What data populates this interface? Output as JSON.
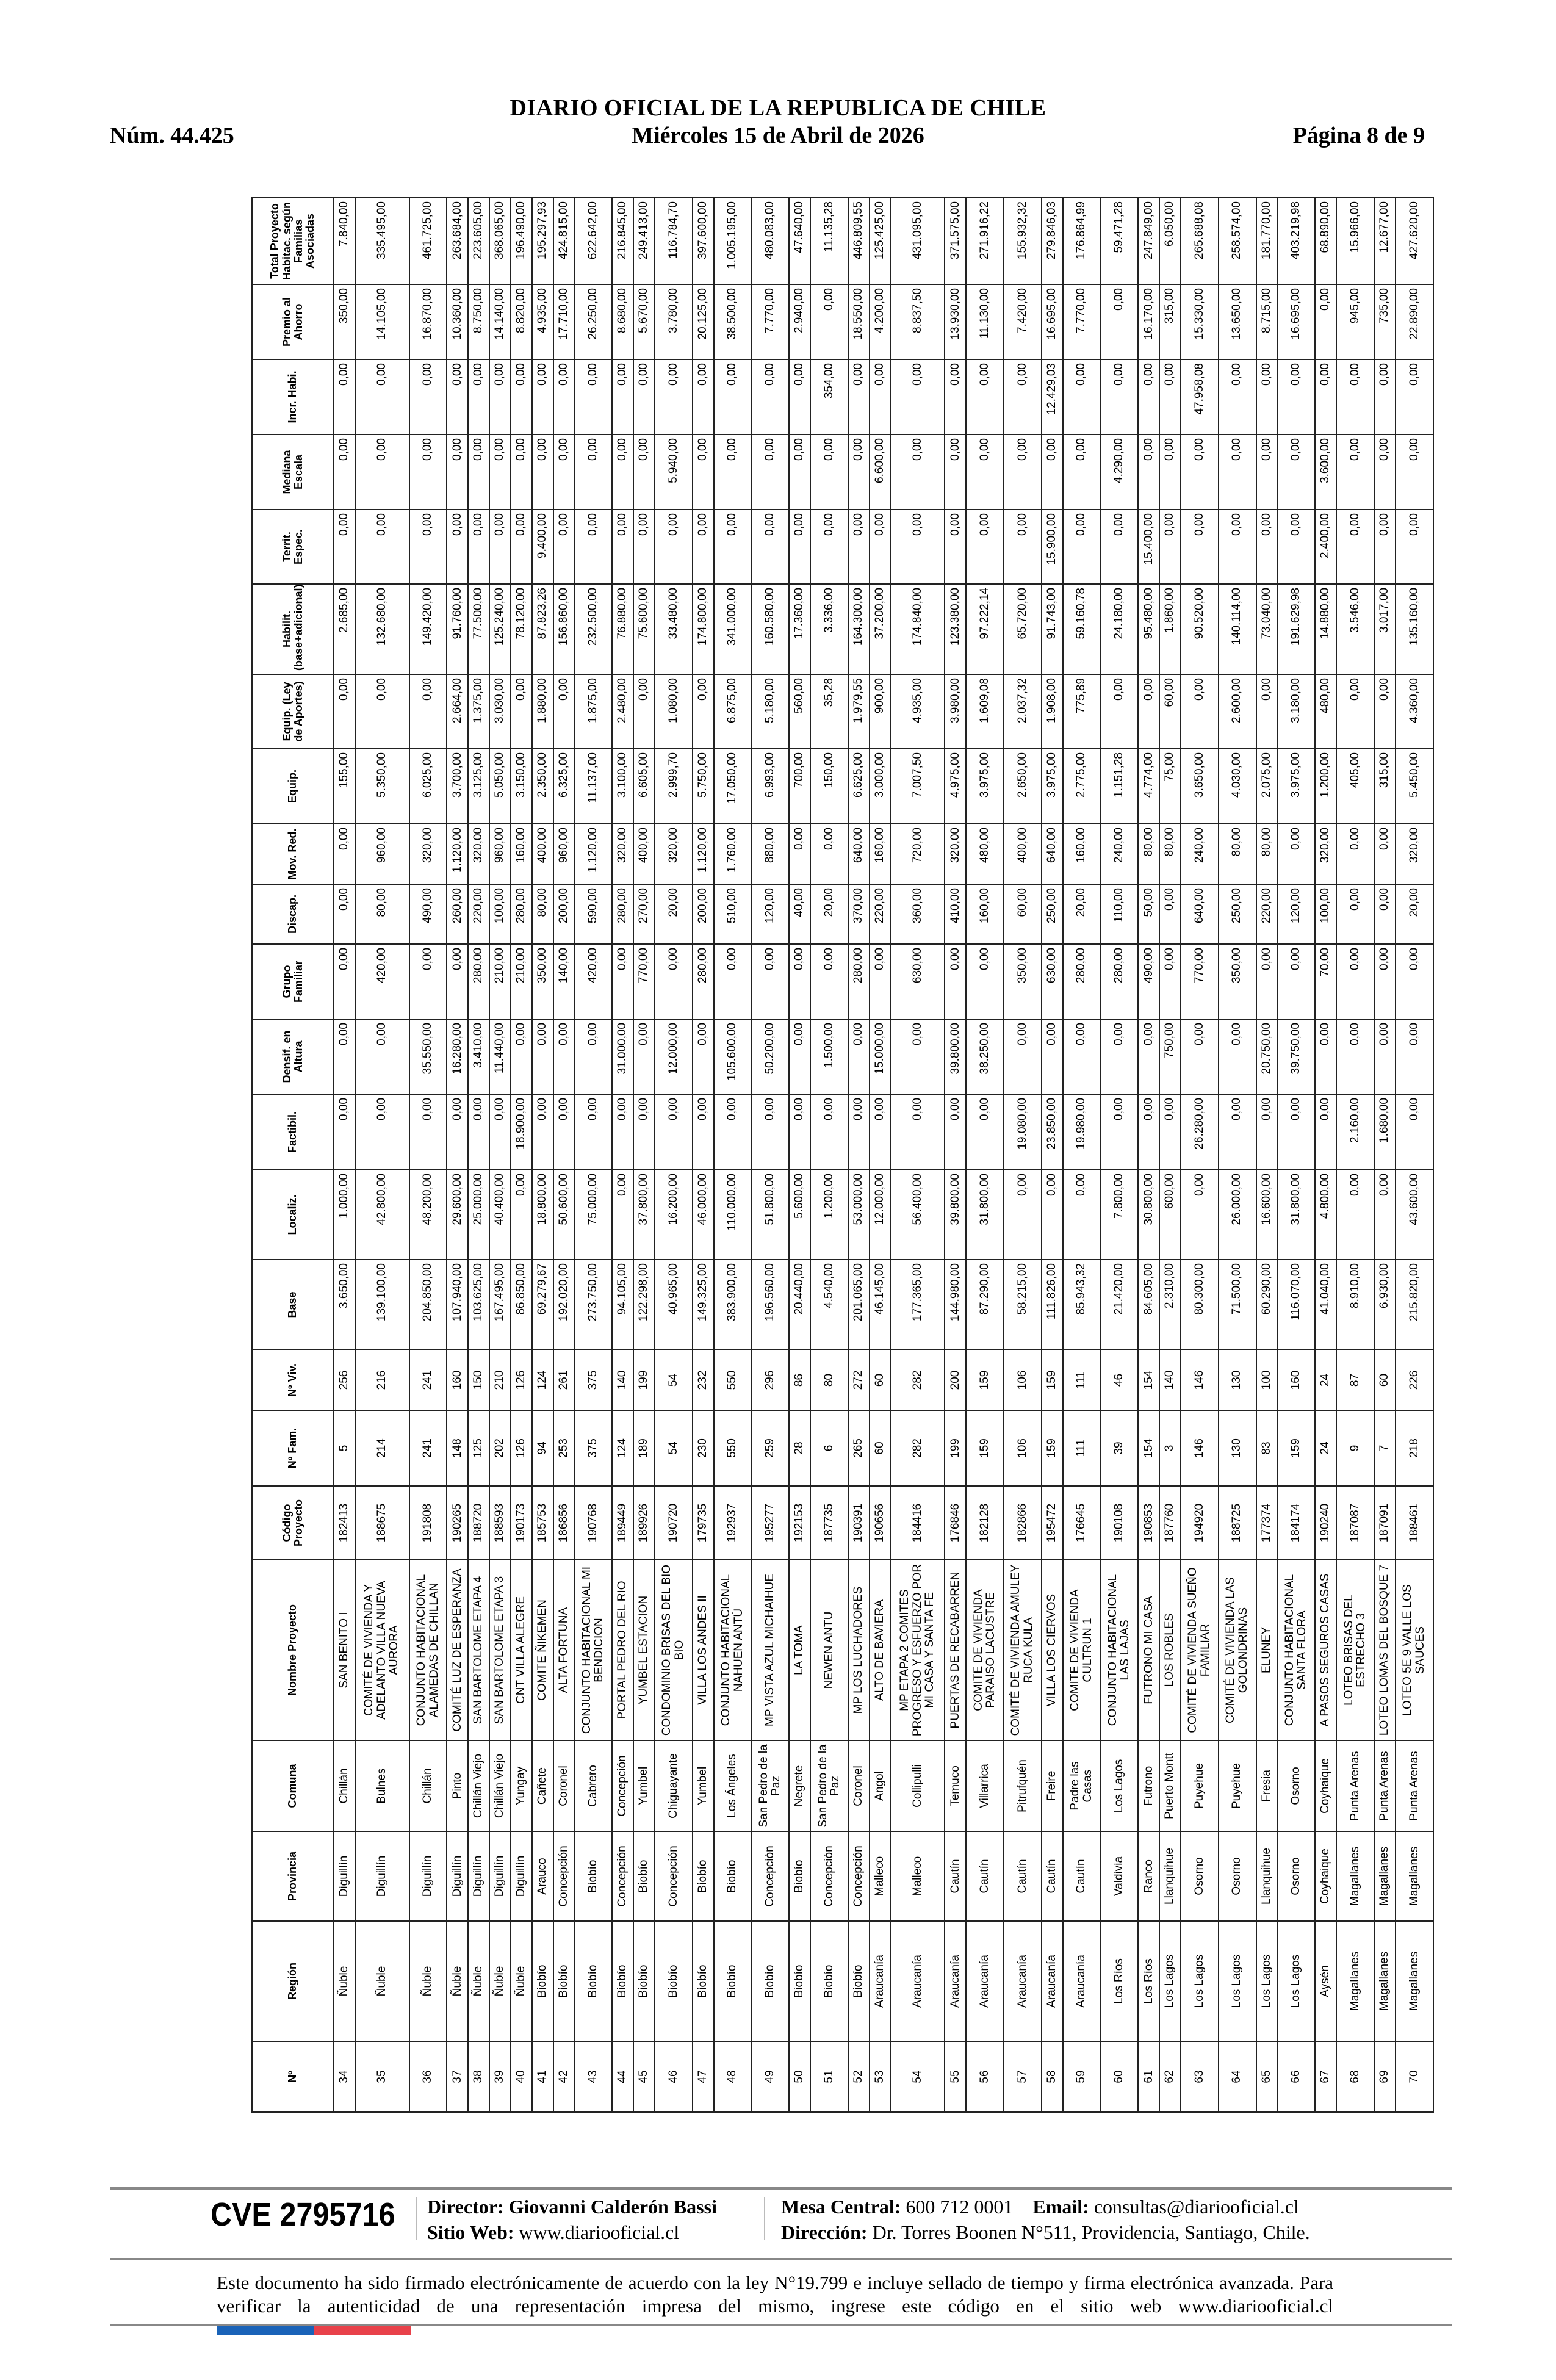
{
  "header": {
    "title": "DIARIO OFICIAL DE LA REPUBLICA DE CHILE",
    "number": "Núm. 44.425",
    "date": "Miércoles 15 de Abril de 2026",
    "page": "Página 8 de 9"
  },
  "table": {
    "columns": [
      "Nº",
      "Región",
      "Provincia",
      "Comuna",
      "Nombre Proyecto",
      "Código Proyecto",
      "Nº Fam.",
      "Nº Viv.",
      "Base",
      "Localiz.",
      "Factibil.",
      "Densif. en Altura",
      "Grupo Familiar",
      "Discap.",
      "Mov. Red.",
      "Equip.",
      "Equip. (Ley de Aportes)",
      "Habilit. (base+adicional)",
      "Territ. Espec.",
      "Mediana Escala",
      "Incr. Habi.",
      "Premio al Ahorro",
      "Total Proyecto Habitac. según Familias Asociadas"
    ],
    "rows": [
      [
        "34",
        "Ñuble",
        "Diguillín",
        "Chillán",
        "SAN BENITO I",
        "182413",
        "5",
        "256",
        "3.650,00",
        "1.000,00",
        "0,00",
        "0,00",
        "0,00",
        "0,00",
        "0,00",
        "155,00",
        "0,00",
        "2.685,00",
        "0,00",
        "0,00",
        "0,00",
        "350,00",
        "7.840,00"
      ],
      [
        "35",
        "Ñuble",
        "Diguillín",
        "Bulnes",
        "COMITÉ DE VIVIENDA Y ADELANTO VILLA NUEVA AURORA",
        "188675",
        "214",
        "216",
        "139.100,00",
        "42.800,00",
        "0,00",
        "0,00",
        "420,00",
        "80,00",
        "960,00",
        "5.350,00",
        "0,00",
        "132.680,00",
        "0,00",
        "0,00",
        "0,00",
        "14.105,00",
        "335.495,00"
      ],
      [
        "36",
        "Ñuble",
        "Diguillín",
        "Chillán",
        "CONJUNTO HABITACIONAL ALAMEDAS DE CHILLAN",
        "191808",
        "241",
        "241",
        "204.850,00",
        "48.200,00",
        "0,00",
        "35.550,00",
        "0,00",
        "490,00",
        "320,00",
        "6.025,00",
        "0,00",
        "149.420,00",
        "0,00",
        "0,00",
        "0,00",
        "16.870,00",
        "461.725,00"
      ],
      [
        "37",
        "Ñuble",
        "Diguillín",
        "Pinto",
        "COMITÉ LUZ DE ESPERANZA",
        "190265",
        "148",
        "160",
        "107.940,00",
        "29.600,00",
        "0,00",
        "16.280,00",
        "0,00",
        "260,00",
        "1.120,00",
        "3.700,00",
        "2.664,00",
        "91.760,00",
        "0,00",
        "0,00",
        "0,00",
        "10.360,00",
        "263.684,00"
      ],
      [
        "38",
        "Ñuble",
        "Diguillín",
        "Chillán Viejo",
        "SAN BARTOLOME ETAPA 4",
        "188720",
        "125",
        "150",
        "103.625,00",
        "25.000,00",
        "0,00",
        "3.410,00",
        "280,00",
        "220,00",
        "320,00",
        "3.125,00",
        "1.375,00",
        "77.500,00",
        "0,00",
        "0,00",
        "0,00",
        "8.750,00",
        "223.605,00"
      ],
      [
        "39",
        "Ñuble",
        "Diguillín",
        "Chillán Viejo",
        "SAN BARTOLOME ETAPA 3",
        "188593",
        "202",
        "210",
        "167.495,00",
        "40.400,00",
        "0,00",
        "11.440,00",
        "210,00",
        "100,00",
        "960,00",
        "5.050,00",
        "3.030,00",
        "125.240,00",
        "0,00",
        "0,00",
        "0,00",
        "14.140,00",
        "368.065,00"
      ],
      [
        "40",
        "Ñuble",
        "Diguillín",
        "Yungay",
        "CNT VILLA ALEGRE",
        "190173",
        "126",
        "126",
        "86.850,00",
        "0,00",
        "18.900,00",
        "0,00",
        "210,00",
        "280,00",
        "160,00",
        "3.150,00",
        "0,00",
        "78.120,00",
        "0,00",
        "0,00",
        "0,00",
        "8.820,00",
        "196.490,00"
      ],
      [
        "41",
        "Biobío",
        "Arauco",
        "Cañete",
        "COMITE ÑIKEMEN",
        "185753",
        "94",
        "124",
        "69.279,67",
        "18.800,00",
        "0,00",
        "0,00",
        "350,00",
        "80,00",
        "400,00",
        "2.350,00",
        "1.880,00",
        "87.823,26",
        "9.400,00",
        "0,00",
        "0,00",
        "4.935,00",
        "195.297,93"
      ],
      [
        "42",
        "Biobío",
        "Concepción",
        "Coronel",
        "ALTA FORTUNA",
        "186856",
        "253",
        "261",
        "192.020,00",
        "50.600,00",
        "0,00",
        "0,00",
        "140,00",
        "200,00",
        "960,00",
        "6.325,00",
        "0,00",
        "156.860,00",
        "0,00",
        "0,00",
        "0,00",
        "17.710,00",
        "424.815,00"
      ],
      [
        "43",
        "Biobío",
        "Biobío",
        "Cabrero",
        "CONJUNTO HABITACIONAL MI BENDICION",
        "190768",
        "375",
        "375",
        "273.750,00",
        "75.000,00",
        "0,00",
        "0,00",
        "420,00",
        "590,00",
        "1.120,00",
        "11.137,00",
        "1.875,00",
        "232.500,00",
        "0,00",
        "0,00",
        "0,00",
        "26.250,00",
        "622.642,00"
      ],
      [
        "44",
        "Biobío",
        "Concepción",
        "Concepción",
        "PORTAL PEDRO DEL RIO",
        "189449",
        "124",
        "140",
        "94.105,00",
        "0,00",
        "0,00",
        "31.000,00",
        "0,00",
        "280,00",
        "320,00",
        "3.100,00",
        "2.480,00",
        "76.880,00",
        "0,00",
        "0,00",
        "0,00",
        "8.680,00",
        "216.845,00"
      ],
      [
        "45",
        "Biobío",
        "Biobío",
        "Yumbel",
        "YUMBEL ESTACION",
        "189926",
        "189",
        "199",
        "122.298,00",
        "37.800,00",
        "0,00",
        "0,00",
        "770,00",
        "270,00",
        "400,00",
        "6.605,00",
        "0,00",
        "75.600,00",
        "0,00",
        "0,00",
        "0,00",
        "5.670,00",
        "249.413,00"
      ],
      [
        "46",
        "Biobío",
        "Concepción",
        "Chiguayante",
        "CONDOMINIO  BRISAS DEL BIO BIO",
        "190720",
        "54",
        "54",
        "40.965,00",
        "16.200,00",
        "0,00",
        "12.000,00",
        "0,00",
        "20,00",
        "320,00",
        "2.999,70",
        "1.080,00",
        "33.480,00",
        "0,00",
        "5.940,00",
        "0,00",
        "3.780,00",
        "116.784,70"
      ],
      [
        "47",
        "Biobío",
        "Biobío",
        "Yumbel",
        "VILLA LOS ANDES II",
        "179735",
        "230",
        "232",
        "149.325,00",
        "46.000,00",
        "0,00",
        "0,00",
        "280,00",
        "200,00",
        "1.120,00",
        "5.750,00",
        "0,00",
        "174.800,00",
        "0,00",
        "0,00",
        "0,00",
        "20.125,00",
        "397.600,00"
      ],
      [
        "48",
        "Biobío",
        "Biobío",
        "Los Ángeles",
        "CONJUNTO HABITACIONAL NAHUEN ANTÚ",
        "192937",
        "550",
        "550",
        "383.900,00",
        "110.000,00",
        "0,00",
        "105.600,00",
        "0,00",
        "510,00",
        "1.760,00",
        "17.050,00",
        "6.875,00",
        "341.000,00",
        "0,00",
        "0,00",
        "0,00",
        "38.500,00",
        "1.005.195,00"
      ],
      [
        "49",
        "Biobío",
        "Concepción",
        "San Pedro de la Paz",
        "MP VISTA AZUL MICHAIHUE",
        "195277",
        "259",
        "296",
        "196.560,00",
        "51.800,00",
        "0,00",
        "50.200,00",
        "0,00",
        "120,00",
        "880,00",
        "6.993,00",
        "5.180,00",
        "160.580,00",
        "0,00",
        "0,00",
        "0,00",
        "7.770,00",
        "480.083,00"
      ],
      [
        "50",
        "Biobío",
        "Biobío",
        "Negrete",
        "LA TOMA",
        "192153",
        "28",
        "86",
        "20.440,00",
        "5.600,00",
        "0,00",
        "0,00",
        "0,00",
        "40,00",
        "0,00",
        "700,00",
        "560,00",
        "17.360,00",
        "0,00",
        "0,00",
        "0,00",
        "2.940,00",
        "47.640,00"
      ],
      [
        "51",
        "Biobío",
        "Concepción",
        "San Pedro de la Paz",
        "NEWEN ANTU",
        "187735",
        "6",
        "80",
        "4.540,00",
        "1.200,00",
        "0,00",
        "1.500,00",
        "0,00",
        "20,00",
        "0,00",
        "150,00",
        "35,28",
        "3.336,00",
        "0,00",
        "0,00",
        "354,00",
        "0,00",
        "11.135,28"
      ],
      [
        "52",
        "Biobío",
        "Concepción",
        "Coronel",
        "MP LOS LUCHADORES",
        "190391",
        "265",
        "272",
        "201.065,00",
        "53.000,00",
        "0,00",
        "0,00",
        "280,00",
        "370,00",
        "640,00",
        "6.625,00",
        "1.979,55",
        "164.300,00",
        "0,00",
        "0,00",
        "0,00",
        "18.550,00",
        "446.809,55"
      ],
      [
        "53",
        "Araucanía",
        "Malleco",
        "Angol",
        "ALTO DE BAVIERA",
        "190656",
        "60",
        "60",
        "46.145,00",
        "12.000,00",
        "0,00",
        "15.000,00",
        "0,00",
        "220,00",
        "160,00",
        "3.000,00",
        "900,00",
        "37.200,00",
        "0,00",
        "6.600,00",
        "0,00",
        "4.200,00",
        "125.425,00"
      ],
      [
        "54",
        "Araucanía",
        "Malleco",
        "Collipulli",
        "MP ETAPA 2  COMITES PROGRESO Y ESFUERZO POR MI CASA  Y SANTA FE",
        "184416",
        "282",
        "282",
        "177.365,00",
        "56.400,00",
        "0,00",
        "0,00",
        "630,00",
        "360,00",
        "720,00",
        "7.007,50",
        "4.935,00",
        "174.840,00",
        "0,00",
        "0,00",
        "0,00",
        "8.837,50",
        "431.095,00"
      ],
      [
        "55",
        "Araucanía",
        "Cautín",
        "Temuco",
        "PUERTAS DE RECABARREN",
        "176846",
        "199",
        "200",
        "144.980,00",
        "39.800,00",
        "0,00",
        "39.800,00",
        "0,00",
        "410,00",
        "320,00",
        "4.975,00",
        "3.980,00",
        "123.380,00",
        "0,00",
        "0,00",
        "0,00",
        "13.930,00",
        "371.575,00"
      ],
      [
        "56",
        "Araucanía",
        "Cautín",
        "Villarrica",
        "COMITE DE VIVIENDA PARAISO LACUSTRE",
        "182128",
        "159",
        "159",
        "87.290,00",
        "31.800,00",
        "0,00",
        "38.250,00",
        "0,00",
        "160,00",
        "480,00",
        "3.975,00",
        "1.609,08",
        "97.222,14",
        "0,00",
        "0,00",
        "0,00",
        "11.130,00",
        "271.916,22"
      ],
      [
        "57",
        "Araucanía",
        "Cautín",
        "Pitrufquén",
        "COMITÉ DE VIVIENDA AMULEY RUCA KULA",
        "182866",
        "106",
        "106",
        "58.215,00",
        "0,00",
        "19.080,00",
        "0,00",
        "350,00",
        "60,00",
        "400,00",
        "2.650,00",
        "2.037,32",
        "65.720,00",
        "0,00",
        "0,00",
        "0,00",
        "7.420,00",
        "155.932,32"
      ],
      [
        "58",
        "Araucanía",
        "Cautín",
        "Freire",
        "VILLA LOS CIERVOS",
        "195472",
        "159",
        "159",
        "111.826,00",
        "0,00",
        "23.850,00",
        "0,00",
        "630,00",
        "250,00",
        "640,00",
        "3.975,00",
        "1.908,00",
        "91.743,00",
        "15.900,00",
        "0,00",
        "12.429,03",
        "16.695,00",
        "279.846,03"
      ],
      [
        "59",
        "Araucanía",
        "Cautín",
        "Padre las Casas",
        "COMITE DE VIVIENDA CULTRUN 1",
        "176645",
        "111",
        "111",
        "85.943,32",
        "0,00",
        "19.980,00",
        "0,00",
        "280,00",
        "20,00",
        "160,00",
        "2.775,00",
        "775,89",
        "59.160,78",
        "0,00",
        "0,00",
        "0,00",
        "7.770,00",
        "176.864,99"
      ],
      [
        "60",
        "Los Ríos",
        "Valdivia",
        "Los Lagos",
        "CONJUNTO HABITACIONAL LAS LAJAS",
        "190108",
        "39",
        "46",
        "21.420,00",
        "7.800,00",
        "0,00",
        "0,00",
        "280,00",
        "110,00",
        "240,00",
        "1.151,28",
        "0,00",
        "24.180,00",
        "0,00",
        "4.290,00",
        "0,00",
        "0,00",
        "59.471,28"
      ],
      [
        "61",
        "Los Ríos",
        "Ranco",
        "Futrono",
        "FUTRONO MI CASA",
        "190853",
        "154",
        "154",
        "84.605,00",
        "30.800,00",
        "0,00",
        "0,00",
        "490,00",
        "50,00",
        "80,00",
        "4.774,00",
        "0,00",
        "95.480,00",
        "15.400,00",
        "0,00",
        "0,00",
        "16.170,00",
        "247.849,00"
      ],
      [
        "62",
        "Los Lagos",
        "Llanquihue",
        "Puerto Montt",
        "LOS ROBLES",
        "187760",
        "3",
        "140",
        "2.310,00",
        "600,00",
        "0,00",
        "750,00",
        "0,00",
        "0,00",
        "80,00",
        "75,00",
        "60,00",
        "1.860,00",
        "0,00",
        "0,00",
        "0,00",
        "315,00",
        "6.050,00"
      ],
      [
        "63",
        "Los Lagos",
        "Osorno",
        "Puyehue",
        "COMITÉ DE VIVIENDA SUEÑO FAMILIAR",
        "194920",
        "146",
        "146",
        "80.300,00",
        "0,00",
        "26.280,00",
        "0,00",
        "770,00",
        "640,00",
        "240,00",
        "3.650,00",
        "0,00",
        "90.520,00",
        "0,00",
        "0,00",
        "47.958,08",
        "15.330,00",
        "265.688,08"
      ],
      [
        "64",
        "Los Lagos",
        "Osorno",
        "Puyehue",
        "COMITÉ DE VIVIENDA LAS GOLONDRINAS",
        "188725",
        "130",
        "130",
        "71.500,00",
        "26.000,00",
        "0,00",
        "0,00",
        "350,00",
        "250,00",
        "80,00",
        "4.030,00",
        "2.600,00",
        "140.114,00",
        "0,00",
        "0,00",
        "0,00",
        "13.650,00",
        "258.574,00"
      ],
      [
        "65",
        "Los Lagos",
        "Llanquihue",
        "Fresia",
        "ELUNEY",
        "177374",
        "83",
        "100",
        "60.290,00",
        "16.600,00",
        "0,00",
        "20.750,00",
        "0,00",
        "220,00",
        "80,00",
        "2.075,00",
        "0,00",
        "73.040,00",
        "0,00",
        "0,00",
        "0,00",
        "8.715,00",
        "181.770,00"
      ],
      [
        "66",
        "Los Lagos",
        "Osorno",
        "Osorno",
        "CONJUNTO HABITACIONAL SANTA FLORA",
        "184174",
        "159",
        "160",
        "116.070,00",
        "31.800,00",
        "0,00",
        "39.750,00",
        "0,00",
        "120,00",
        "0,00",
        "3.975,00",
        "3.180,00",
        "191.629,98",
        "0,00",
        "0,00",
        "0,00",
        "16.695,00",
        "403.219,98"
      ],
      [
        "67",
        "Aysén",
        "Coyhaique",
        "Coyhaique",
        "A PASOS SEGUROS CASAS",
        "190240",
        "24",
        "24",
        "41.040,00",
        "4.800,00",
        "0,00",
        "0,00",
        "70,00",
        "100,00",
        "320,00",
        "1.200,00",
        "480,00",
        "14.880,00",
        "2.400,00",
        "3.600,00",
        "0,00",
        "0,00",
        "68.890,00"
      ],
      [
        "68",
        "Magallanes",
        "Magallanes",
        "Punta Arenas",
        "LOTEO BRISAS DEL ESTRECHO 3",
        "187087",
        "9",
        "87",
        "8.910,00",
        "0,00",
        "2.160,00",
        "0,00",
        "0,00",
        "0,00",
        "0,00",
        "405,00",
        "0,00",
        "3.546,00",
        "0,00",
        "0,00",
        "0,00",
        "945,00",
        "15.966,00"
      ],
      [
        "69",
        "Magallanes",
        "Magallanes",
        "Punta Arenas",
        "LOTEO LOMAS DEL BOSQUE 7",
        "187091",
        "7",
        "60",
        "6.930,00",
        "0,00",
        "1.680,00",
        "0,00",
        "0,00",
        "0,00",
        "0,00",
        "315,00",
        "0,00",
        "3.017,00",
        "0,00",
        "0,00",
        "0,00",
        "735,00",
        "12.677,00"
      ],
      [
        "70",
        "Magallanes",
        "Magallanes",
        "Punta Arenas",
        "LOTEO 5E 9  VALLE LOS SAUCES",
        "188461",
        "218",
        "226",
        "215.820,00",
        "43.600,00",
        "0,00",
        "0,00",
        "0,00",
        "20,00",
        "320,00",
        "5.450,00",
        "4.360,00",
        "135.160,00",
        "0,00",
        "0,00",
        "0,00",
        "22.890,00",
        "427.620,00"
      ]
    ]
  },
  "footer": {
    "cve": "CVE 2795716",
    "director_label": "Director:",
    "director": "Giovanni Calderón Bassi",
    "web_label": "Sitio Web:",
    "web": "www.diariooficial.cl",
    "phone_label": "Mesa Central:",
    "phone": "600 712 0001",
    "email_label": "Email:",
    "email": "consultas@diariooficial.cl",
    "address_label": "Dirección:",
    "address": "Dr. Torres Boonen N°511, Providencia, Santiago, Chile.",
    "notice": "Este documento ha sido firmado electrónicamente de acuerdo con la ley N°19.799 e incluye sellado de tiempo y firma electrónica avanzada. Para verificar la autenticidad de una representación impresa del mismo, ingrese este código en el sitio web www.diariooficial.cl",
    "flag_colors": [
      "#1a63b8",
      "#e8414a"
    ]
  }
}
